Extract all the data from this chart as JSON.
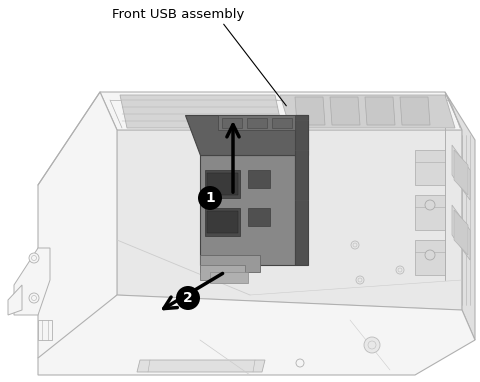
{
  "label_text": "Front USB assembly",
  "bg_color": "#ffffff",
  "line_color": "#aaaaaa",
  "line_color_dark": "#888888",
  "usb_fill": "#888888",
  "usb_dark": "#555555",
  "usb_light": "#aaaaaa",
  "chassis_fill": "#f0f0f0",
  "chassis_stroke": "#aaaaaa",
  "arrow_color": "#111111",
  "figsize": [
    4.8,
    3.82
  ],
  "dpi": 100
}
